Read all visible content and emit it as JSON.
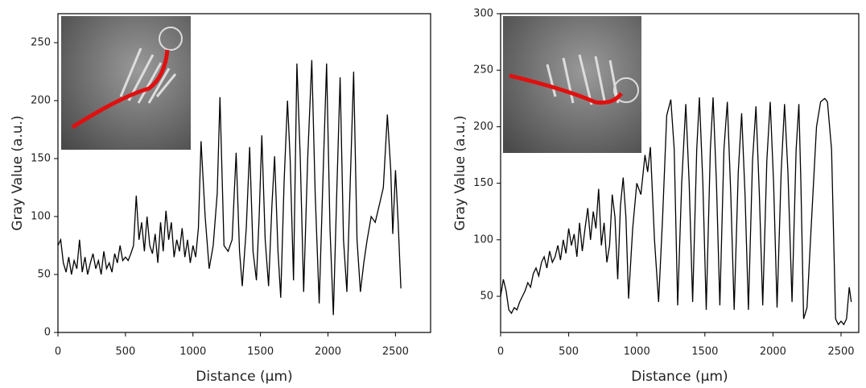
{
  "chart_data": [
    {
      "type": "line",
      "xlabel": "Distance (μm)",
      "ylabel": "Gray Value (a.u.)",
      "color": "#000000",
      "xlim": [
        0,
        2760
      ],
      "ylim": [
        0,
        275
      ],
      "xticks": [
        0,
        500,
        1000,
        1500,
        2000,
        2500
      ],
      "yticks": [
        0,
        50,
        100,
        150,
        200,
        250
      ],
      "x": [
        0,
        20,
        40,
        60,
        80,
        100,
        120,
        140,
        160,
        180,
        200,
        220,
        240,
        260,
        280,
        300,
        320,
        340,
        360,
        380,
        400,
        420,
        440,
        460,
        480,
        500,
        520,
        540,
        560,
        580,
        600,
        620,
        640,
        660,
        680,
        700,
        720,
        740,
        760,
        780,
        800,
        820,
        840,
        860,
        880,
        900,
        920,
        940,
        960,
        980,
        1000,
        1020,
        1040,
        1060,
        1090,
        1120,
        1150,
        1180,
        1200,
        1230,
        1260,
        1290,
        1320,
        1345,
        1365,
        1395,
        1420,
        1445,
        1470,
        1490,
        1510,
        1535,
        1560,
        1585,
        1605,
        1630,
        1650,
        1675,
        1700,
        1720,
        1745,
        1770,
        1795,
        1820,
        1850,
        1880,
        1905,
        1935,
        1965,
        1990,
        2015,
        2040,
        2065,
        2090,
        2115,
        2140,
        2165,
        2190,
        2215,
        2240,
        2265,
        2290,
        2320,
        2350,
        2380,
        2410,
        2440,
        2465,
        2480,
        2500,
        2520,
        2540
      ],
      "values": [
        75,
        80,
        60,
        52,
        65,
        50,
        62,
        55,
        80,
        52,
        65,
        50,
        60,
        68,
        55,
        62,
        50,
        70,
        55,
        60,
        52,
        68,
        60,
        75,
        62,
        65,
        62,
        68,
        75,
        118,
        80,
        95,
        70,
        100,
        75,
        68,
        85,
        60,
        95,
        70,
        105,
        80,
        95,
        65,
        80,
        70,
        90,
        65,
        80,
        60,
        75,
        65,
        90,
        165,
        100,
        55,
        75,
        120,
        203,
        75,
        70,
        80,
        155,
        70,
        40,
        90,
        160,
        70,
        45,
        100,
        170,
        80,
        40,
        110,
        152,
        70,
        30,
        130,
        200,
        150,
        45,
        232,
        150,
        35,
        150,
        235,
        120,
        25,
        140,
        232,
        90,
        15,
        120,
        220,
        80,
        35,
        130,
        225,
        80,
        35,
        60,
        80,
        100,
        95,
        110,
        125,
        188,
        140,
        85,
        140,
        95,
        38
      ]
    },
    {
      "type": "line",
      "xlabel": "Distance (μm)",
      "ylabel": "Gray Value (a.u.)",
      "color": "#000000",
      "xlim": [
        0,
        2630
      ],
      "ylim": [
        18,
        300
      ],
      "xticks": [
        0,
        500,
        1000,
        1500,
        2000,
        2500
      ],
      "yticks": [
        50,
        100,
        150,
        200,
        250,
        300
      ],
      "x": [
        0,
        20,
        40,
        60,
        80,
        100,
        120,
        140,
        160,
        180,
        200,
        220,
        240,
        260,
        280,
        300,
        320,
        340,
        360,
        380,
        400,
        420,
        440,
        460,
        480,
        500,
        520,
        540,
        560,
        580,
        600,
        620,
        640,
        660,
        680,
        700,
        720,
        740,
        760,
        780,
        800,
        820,
        840,
        860,
        880,
        900,
        920,
        940,
        970,
        1000,
        1030,
        1060,
        1080,
        1100,
        1130,
        1160,
        1190,
        1220,
        1250,
        1275,
        1300,
        1330,
        1360,
        1385,
        1410,
        1440,
        1460,
        1485,
        1510,
        1540,
        1560,
        1585,
        1610,
        1640,
        1665,
        1690,
        1715,
        1745,
        1770,
        1795,
        1820,
        1850,
        1875,
        1900,
        1925,
        1955,
        1980,
        2005,
        2030,
        2060,
        2085,
        2110,
        2140,
        2170,
        2190,
        2205,
        2225,
        2250,
        2280,
        2320,
        2350,
        2380,
        2400,
        2430,
        2460,
        2480,
        2500,
        2520,
        2540,
        2560,
        2575
      ],
      "values": [
        50,
        65,
        55,
        38,
        35,
        40,
        38,
        45,
        50,
        55,
        62,
        58,
        70,
        75,
        68,
        80,
        85,
        75,
        90,
        80,
        85,
        95,
        82,
        100,
        88,
        110,
        95,
        105,
        85,
        115,
        90,
        110,
        128,
        100,
        125,
        110,
        145,
        95,
        115,
        80,
        95,
        140,
        120,
        65,
        130,
        155,
        120,
        48,
        110,
        150,
        140,
        175,
        160,
        182,
        100,
        45,
        120,
        210,
        224,
        180,
        42,
        150,
        220,
        150,
        45,
        180,
        226,
        150,
        38,
        180,
        226,
        150,
        42,
        180,
        222,
        140,
        38,
        160,
        212,
        140,
        38,
        170,
        218,
        140,
        42,
        170,
        222,
        150,
        40,
        160,
        220,
        160,
        45,
        180,
        220,
        150,
        30,
        40,
        110,
        200,
        222,
        225,
        222,
        180,
        30,
        25,
        28,
        25,
        30,
        58,
        45
      ]
    }
  ]
}
